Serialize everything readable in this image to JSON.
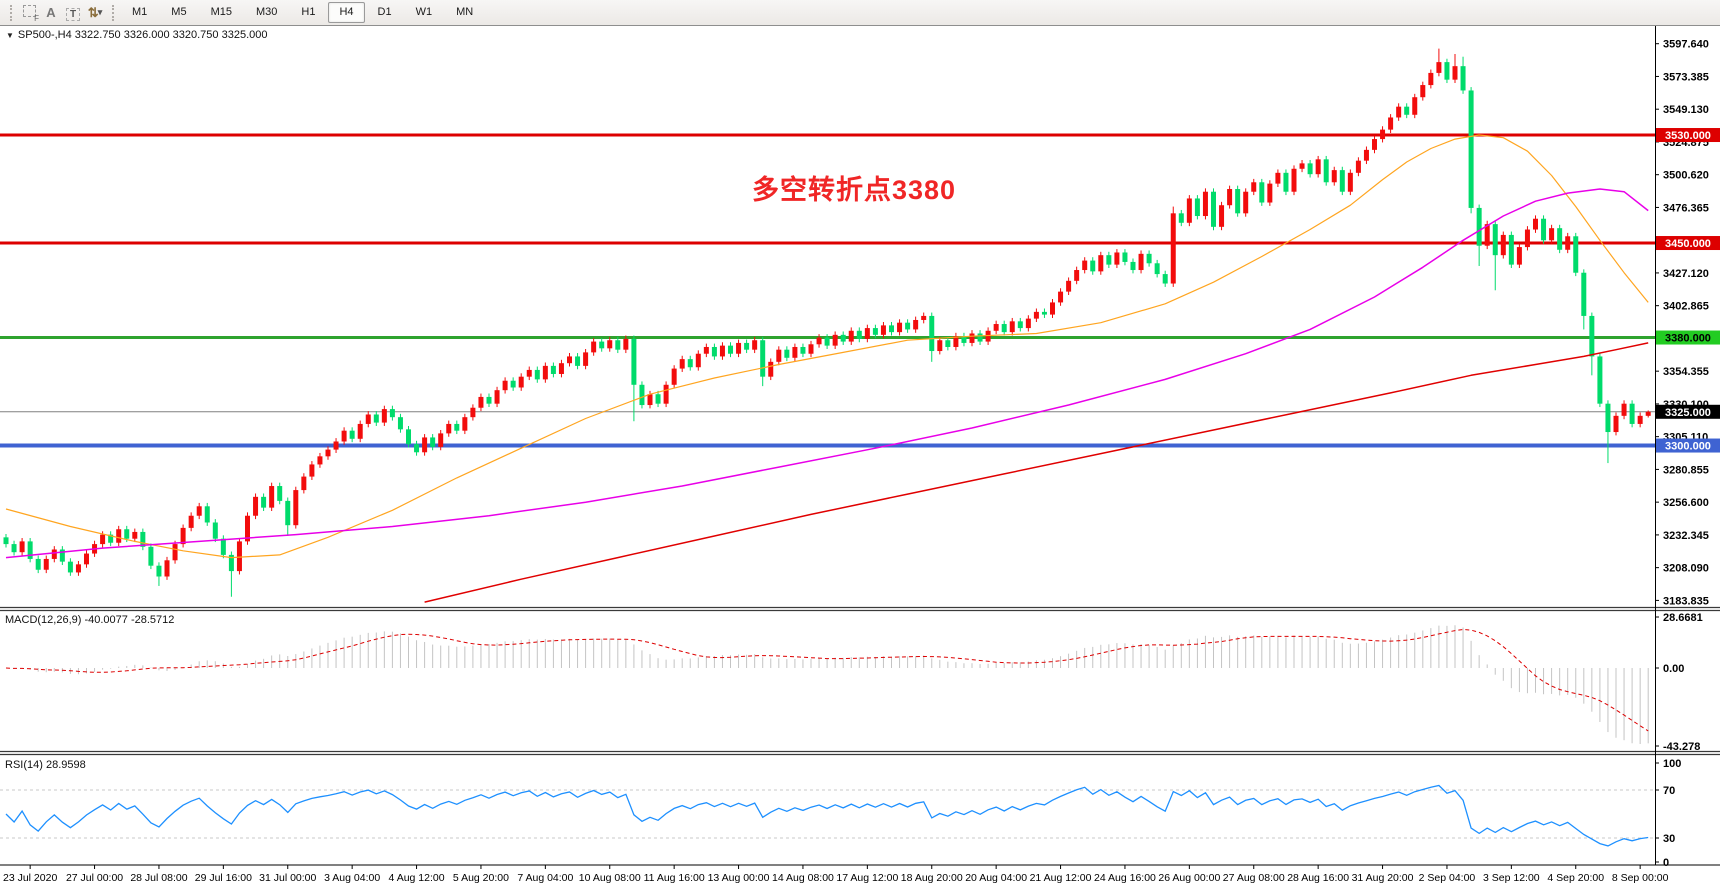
{
  "toolbar": {
    "icons": [
      {
        "id": "dashed-frame-icon",
        "glyph": "F"
      },
      {
        "id": "text-label-icon",
        "glyph": "A"
      },
      {
        "id": "text-tool-icon",
        "glyph": "T"
      },
      {
        "id": "arrow-styles-icon",
        "glyph": "⇅",
        "caret": "▾"
      }
    ],
    "timeframes": [
      "M1",
      "M5",
      "M15",
      "M30",
      "H1",
      "H4",
      "D1",
      "W1",
      "MN"
    ],
    "active_timeframe": "H4"
  },
  "chart": {
    "title": "SP500-,H4  3322.750 3326.000 3320.750 3325.000",
    "symbol": "SP500-",
    "period": "H4",
    "open": "3322.750",
    "high": "3326.000",
    "low": "3320.750",
    "close": "3325.000"
  },
  "annotation": {
    "text": "多空转折点3380",
    "color": "#f02626"
  },
  "indicators": {
    "macd_label": "MACD(12,26,9) -40.0077 -28.5712",
    "rsi_label": "RSI(14) 28.9598",
    "macd_ticks": [
      "28.6681",
      "0.00",
      "-43.278"
    ],
    "rsi_ticks": [
      "100",
      "70",
      "30",
      "0"
    ]
  },
  "axis": {
    "price_ticks": [
      "3597.640",
      "3573.385",
      "3549.130",
      "3524.875",
      "3500.620",
      "3476.365",
      "3452.110",
      "3427.120",
      "3402.865",
      "3378.610",
      "3354.355",
      "3330.100",
      "3305.110",
      "3280.855",
      "3256.600",
      "3232.345",
      "3208.090",
      "3183.835"
    ],
    "time_labels": [
      "23 Jul 2020",
      "27 Jul 00:00",
      "28 Jul 08:00",
      "29 Jul 16:00",
      "31 Jul 00:00",
      "3 Aug 04:00",
      "4 Aug 12:00",
      "5 Aug 20:00",
      "7 Aug 04:00",
      "10 Aug 08:00",
      "11 Aug 16:00",
      "13 Aug 00:00",
      "14 Aug 08:00",
      "17 Aug 12:00",
      "18 Aug 20:00",
      "20 Aug 04:00",
      "21 Aug 12:00",
      "24 Aug 16:00",
      "26 Aug 00:00",
      "27 Aug 08:00",
      "28 Aug 16:00",
      "31 Aug 20:00",
      "2 Sep 04:00",
      "3 Sep 12:00",
      "4 Sep 20:00",
      "8 Sep 00:00"
    ]
  },
  "chart_data": {
    "type": "candlestick",
    "title": "SP500- H4",
    "up_color": "#f20c0c",
    "down_color": "#00db6b",
    "first_open": 3232,
    "closes": [
      3227,
      3221,
      3229,
      3216,
      3208,
      3216,
      3223,
      3214,
      3206,
      3212,
      3220,
      3227,
      3234,
      3228,
      3238,
      3231,
      3236,
      3225,
      3211,
      3203,
      3215,
      3227,
      3239,
      3248,
      3255,
      3243,
      3231,
      3219,
      3207,
      3229,
      3248,
      3262,
      3254,
      3270,
      3259,
      3241,
      3267,
      3277,
      3286,
      3292,
      3297,
      3303,
      3311,
      3305,
      3316,
      3323,
      3317,
      3327,
      3321,
      3312,
      3301,
      3295,
      3306,
      3299,
      3309,
      3316,
      3311,
      3321,
      3328,
      3336,
      3331,
      3341,
      3348,
      3343,
      3351,
      3356,
      3349,
      3359,
      3353,
      3361,
      3366,
      3359,
      3369,
      3377,
      3372,
      3378,
      3371,
      3379,
      3345,
      3330,
      3338,
      3331,
      3345,
      3357,
      3364,
      3358,
      3368,
      3373,
      3366,
      3374,
      3368,
      3376,
      3371,
      3378,
      3351,
      3362,
      3371,
      3365,
      3373,
      3368,
      3375,
      3380,
      3374,
      3382,
      3377,
      3385,
      3379,
      3387,
      3382,
      3389,
      3384,
      3391,
      3386,
      3393,
      3396,
      3370,
      3378,
      3373,
      3381,
      3376,
      3383,
      3377,
      3385,
      3390,
      3384,
      3392,
      3387,
      3394,
      3399,
      3397,
      3406,
      3414,
      3422,
      3430,
      3437,
      3429,
      3441,
      3434,
      3443,
      3436,
      3430,
      3442,
      3435,
      3427,
      3420,
      3472,
      3465,
      3483,
      3470,
      3488,
      3462,
      3478,
      3490,
      3472,
      3488,
      3495,
      3480,
      3494,
      3502,
      3488,
      3505,
      3509,
      3501,
      3512,
      3495,
      3504,
      3488,
      3502,
      3511,
      3519,
      3527,
      3534,
      3543,
      3551,
      3545,
      3558,
      3567,
      3576,
      3584,
      3571,
      3581,
      3563,
      3476,
      3448,
      3464,
      3441,
      3456,
      3434,
      3447,
      3460,
      3468,
      3452,
      3461,
      3445,
      3455,
      3428,
      3396,
      3366,
      3331,
      3310,
      3322,
      3331,
      3316,
      3322,
      3325
    ],
    "wick_overrides": {
      "19": {
        "low": 3196
      },
      "28": {
        "low": 3188
      },
      "35": {
        "low": 3233
      },
      "78": {
        "low": 3318
      },
      "94": {
        "low": 3344
      },
      "115": {
        "low": 3362
      },
      "145": {
        "high": 3477
      },
      "178": {
        "high": 3594
      },
      "180": {
        "high": 3590
      },
      "181": {
        "high": 3588
      },
      "182": {
        "low": 3472
      },
      "183": {
        "low": 3433
      },
      "185": {
        "low": 3415
      },
      "196": {
        "low": 3386
      },
      "197": {
        "low": 3352
      },
      "199": {
        "low": 3287
      },
      "204": {
        "high": 3326,
        "low": 3320.75
      }
    },
    "moving_averages": [
      {
        "name": "ma-fast",
        "color": "#ffa520",
        "width": 1.2,
        "anchors": [
          [
            0,
            3253
          ],
          [
            8,
            3240
          ],
          [
            16,
            3229
          ],
          [
            22,
            3222
          ],
          [
            28,
            3217
          ],
          [
            34,
            3219
          ],
          [
            40,
            3232
          ],
          [
            48,
            3252
          ],
          [
            56,
            3276
          ],
          [
            64,
            3298
          ],
          [
            72,
            3320
          ],
          [
            80,
            3338
          ],
          [
            88,
            3350
          ],
          [
            96,
            3360
          ],
          [
            104,
            3369
          ],
          [
            112,
            3378
          ],
          [
            120,
            3381
          ],
          [
            128,
            3383
          ],
          [
            136,
            3391
          ],
          [
            144,
            3405
          ],
          [
            150,
            3421
          ],
          [
            156,
            3440
          ],
          [
            162,
            3460
          ],
          [
            167,
            3478
          ],
          [
            171,
            3497
          ],
          [
            174,
            3510
          ],
          [
            177,
            3520
          ],
          [
            180,
            3527
          ],
          [
            183,
            3530
          ],
          [
            186,
            3528
          ],
          [
            189,
            3518
          ],
          [
            192,
            3500
          ],
          [
            195,
            3477
          ],
          [
            198,
            3452
          ],
          [
            201,
            3428
          ],
          [
            204,
            3406
          ]
        ]
      },
      {
        "name": "ma-mid",
        "color": "#e800e8",
        "width": 1.5,
        "anchors": [
          [
            0,
            3217
          ],
          [
            12,
            3224
          ],
          [
            24,
            3229
          ],
          [
            36,
            3234
          ],
          [
            48,
            3240
          ],
          [
            60,
            3248
          ],
          [
            72,
            3258
          ],
          [
            84,
            3270
          ],
          [
            96,
            3284
          ],
          [
            108,
            3298
          ],
          [
            120,
            3313
          ],
          [
            132,
            3330
          ],
          [
            144,
            3349
          ],
          [
            154,
            3368
          ],
          [
            162,
            3386
          ],
          [
            170,
            3410
          ],
          [
            176,
            3432
          ],
          [
            181,
            3452
          ],
          [
            186,
            3470
          ],
          [
            190,
            3481
          ],
          [
            194,
            3487
          ],
          [
            198,
            3490
          ],
          [
            201,
            3488
          ],
          [
            204,
            3474
          ]
        ]
      },
      {
        "name": "ma-slow",
        "color": "#e00000",
        "width": 1.5,
        "anchors": [
          [
            52,
            3184
          ],
          [
            64,
            3201
          ],
          [
            76,
            3217
          ],
          [
            88,
            3233
          ],
          [
            100,
            3249
          ],
          [
            112,
            3264
          ],
          [
            124,
            3279
          ],
          [
            136,
            3294
          ],
          [
            148,
            3309
          ],
          [
            160,
            3324
          ],
          [
            172,
            3339
          ],
          [
            182,
            3352
          ],
          [
            190,
            3360
          ],
          [
            196,
            3366
          ],
          [
            200,
            3371
          ],
          [
            204,
            3376
          ]
        ]
      }
    ],
    "hlines": [
      {
        "price": 3530,
        "label": "3530.000",
        "line": "#dd0000",
        "width": 3,
        "tag_bg": "#dd0000",
        "tag_fg": "#ffffff"
      },
      {
        "price": 3450,
        "label": "3450.000",
        "line": "#dd0000",
        "width": 3,
        "tag_bg": "#dd0000",
        "tag_fg": "#ffffff"
      },
      {
        "price": 3380,
        "label": "3380.000",
        "line": "#2fa32f",
        "width": 3,
        "tag_bg": "#22cc22",
        "tag_fg": "#000000"
      },
      {
        "price": 3325,
        "label": "3325.000",
        "line": "#808080",
        "width": 1,
        "tag_bg": "#000000",
        "tag_fg": "#ffffff"
      },
      {
        "price": 3300,
        "label": "3300.000",
        "line": "#3f63d2",
        "width": 4,
        "tag_bg": "#3f63d2",
        "tag_fg": "#ffffff"
      }
    ],
    "macd": {
      "fast": 12,
      "slow": 26,
      "signal": 9,
      "current_macd": -40.0077,
      "current_signal": -28.5712,
      "hist_color": "#c4c4c4",
      "signal_color": "#dd0000"
    },
    "rsi": {
      "period": 14,
      "current": 28.9598,
      "color": "#1e90ff",
      "levels": [
        70,
        30
      ]
    }
  }
}
